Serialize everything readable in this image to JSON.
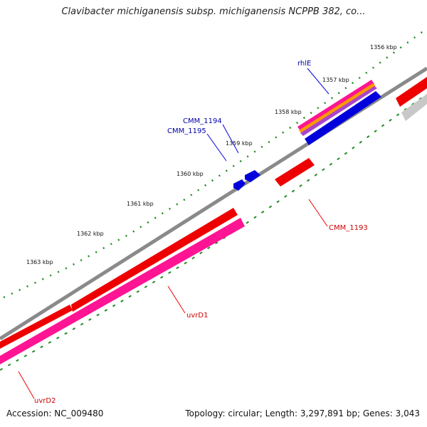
{
  "title": "Clavibacter michiganensis subsp. michiganensis NCPPB 382, co...",
  "footer": {
    "accession": "Accession: NC_009480",
    "summary": "Topology: circular; Length: 3,297,891 bp; Genes: 3,043"
  },
  "ticks": [
    "1356 kbp",
    "1357 kbp",
    "1358 kbp",
    "1359 kbp",
    "1360 kbp",
    "1361 kbp",
    "1362 kbp",
    "1363 kbp"
  ],
  "genes": {
    "rhlE": "rhlE",
    "cmm1194": "CMM_1194",
    "cmm1195": "CMM_1195",
    "cmm1193": "CMM_1193",
    "uvrD1": "uvrD1",
    "uvrD2": "uvrD2"
  },
  "colors": {
    "forward_cds": "#0000dd",
    "reverse_cds": "#ee0000",
    "feature_magenta": "#ff1493",
    "feature_orange": "#ff9900",
    "backbone": "#888888",
    "tick_dots": "#228b22",
    "label_blue": "#0000aa",
    "label_red": "#cc0000"
  }
}
